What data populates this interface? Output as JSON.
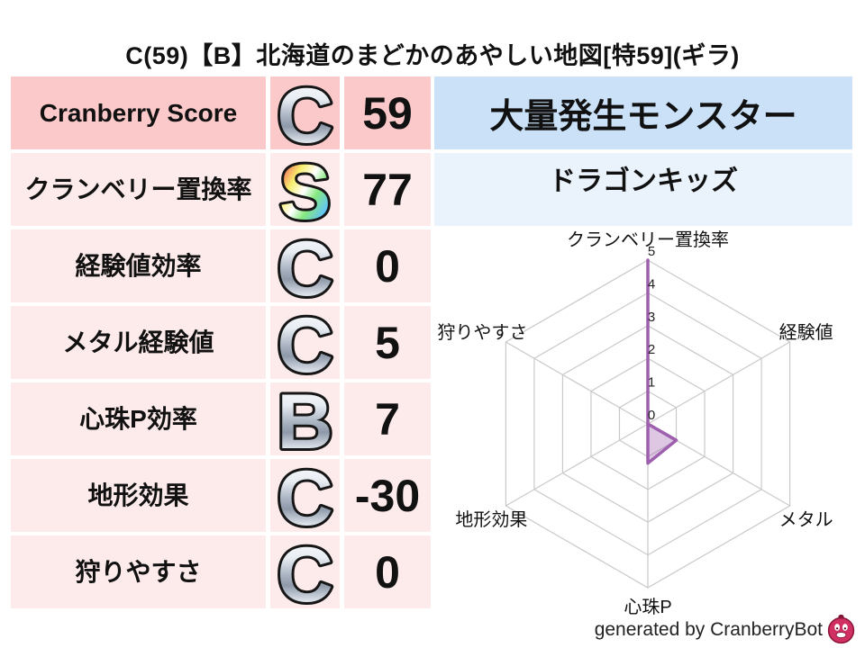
{
  "title": "C(59)【B】北海道のまどかのあやしい地図[特59](ギラ)",
  "stats_table": {
    "rows": [
      {
        "label": "Cranberry Score",
        "grade": "C",
        "value": "59",
        "grade_fill": "url(#grad-silver)"
      },
      {
        "label": "クランベリー置換率",
        "grade": "S",
        "value": "77",
        "grade_fill": "url(#grad-rainbow)"
      },
      {
        "label": "経験値効率",
        "grade": "C",
        "value": "0",
        "grade_fill": "url(#grad-silver)"
      },
      {
        "label": "メタル経験値",
        "grade": "C",
        "value": "5",
        "grade_fill": "url(#grad-silver)"
      },
      {
        "label": "心珠P効率",
        "grade": "B",
        "value": "7",
        "grade_fill": "url(#grad-silver)"
      },
      {
        "label": "地形効果",
        "grade": "C",
        "value": "-30",
        "grade_fill": "url(#grad-silver)"
      },
      {
        "label": "狩りやすさ",
        "grade": "C",
        "value": "0",
        "grade_fill": "url(#grad-silver)"
      }
    ]
  },
  "monster_panel": {
    "header": "大量発生モンスター",
    "name": "ドラゴンキッズ"
  },
  "chart_data": {
    "type": "radar",
    "categories": [
      "クランベリー置換率",
      "経験値",
      "メタル",
      "心珠P",
      "地形効果",
      "狩りやすさ"
    ],
    "values": [
      5,
      0,
      1,
      1.2,
      0,
      0
    ],
    "ticks": [
      0,
      1,
      2,
      3,
      4,
      5
    ],
    "max": 5,
    "grid": true,
    "grid_color": "#c9c9c9",
    "series_stroke": "#9d5fae",
    "series_fill": "rgba(157,95,174,0.35)",
    "tick_color": "#222222",
    "label_color": "#111111"
  },
  "footer": {
    "credit": "generated by CranberryBot"
  },
  "colors": {
    "row_highlight_bg": "#fbc9c9",
    "row_bg": "#fdeaea",
    "monster_header_bg": "#cae1f8",
    "monster_name_bg": "#eaf2fc",
    "logo_body": "#d13063",
    "logo_outline": "#8a1638"
  }
}
